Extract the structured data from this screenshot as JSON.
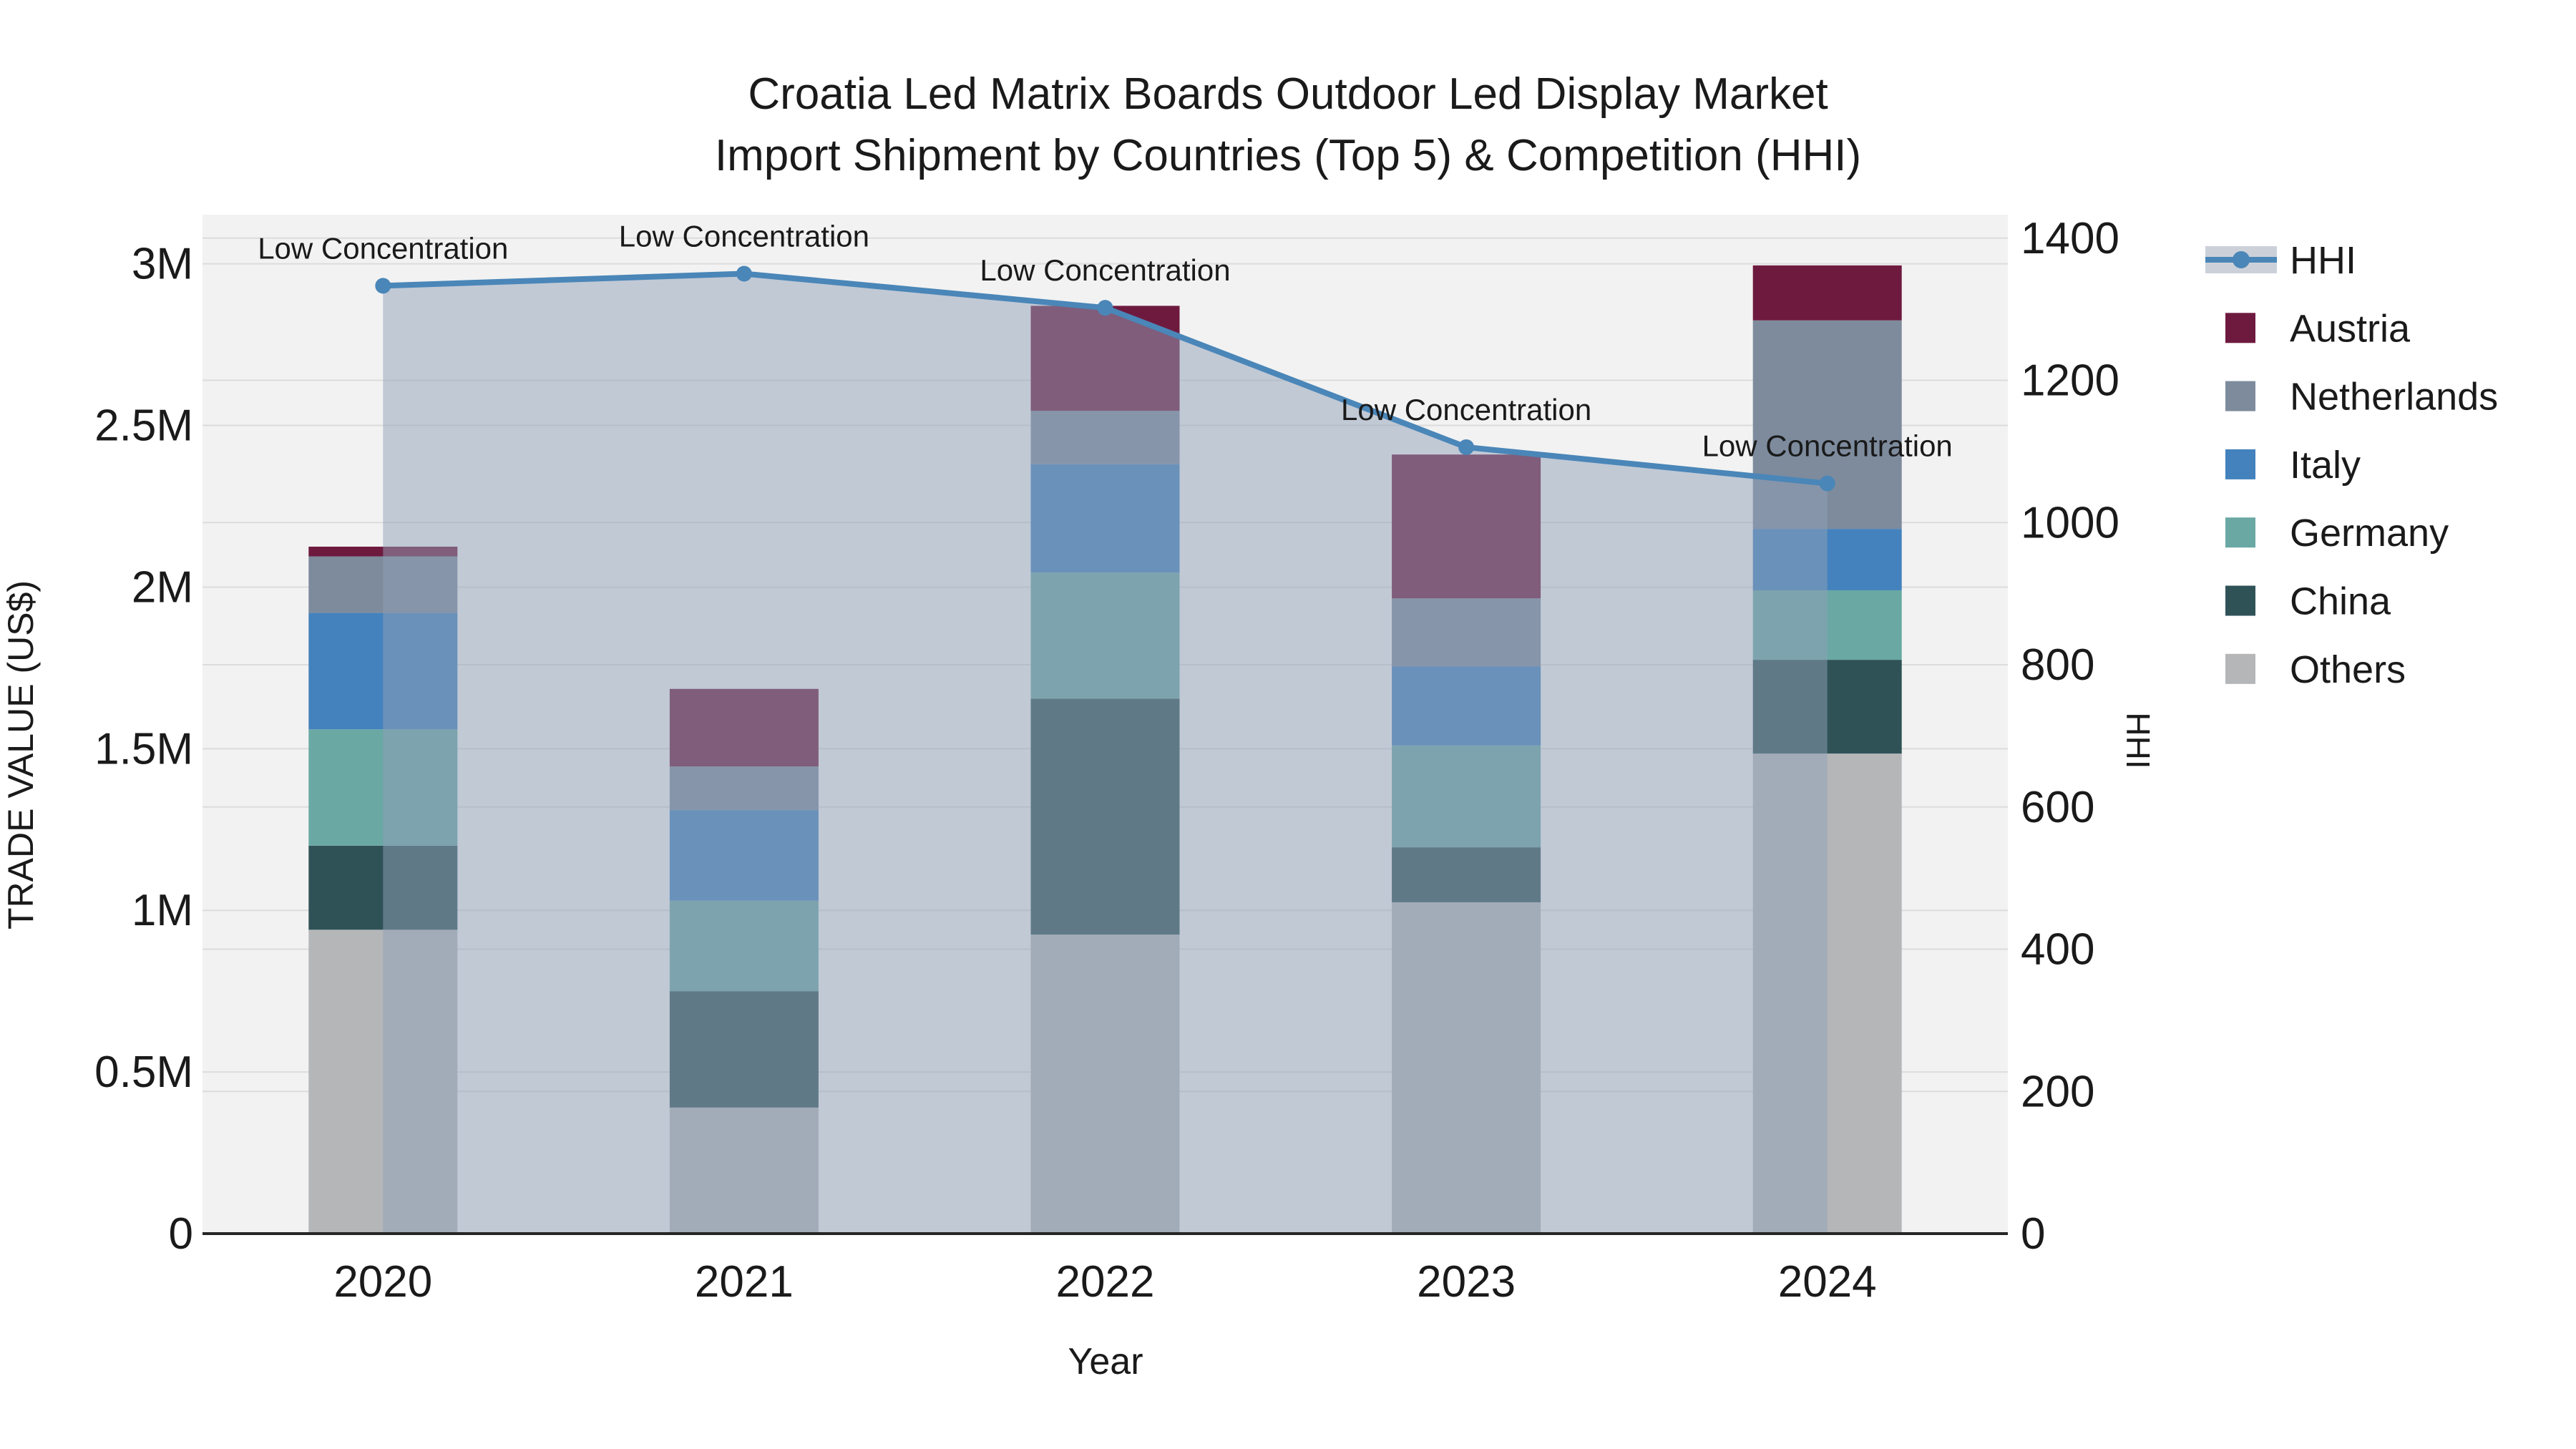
{
  "title": {
    "line1": "Croatia Led Matrix Boards Outdoor Led Display Market",
    "line2": "Import Shipment by Countries (Top 5) & Competition (HHI)"
  },
  "axes": {
    "x": {
      "label": "Year",
      "tick_labels": [
        "2020",
        "2021",
        "2022",
        "2023",
        "2024"
      ]
    },
    "y_left": {
      "label": "TRADE VALUE (US$)",
      "tick_labels": [
        "0",
        "0.5M",
        "1M",
        "1.5M",
        "2M",
        "2.5M",
        "3M"
      ],
      "tick_values": [
        0,
        500000,
        1000000,
        1500000,
        2000000,
        2500000,
        3000000
      ],
      "range": [
        0,
        3152000
      ]
    },
    "y_right": {
      "label": "HHI",
      "tick_labels": [
        "0",
        "200",
        "400",
        "600",
        "800",
        "1000",
        "1200",
        "1400"
      ],
      "tick_values": [
        0,
        200,
        400,
        600,
        800,
        1000,
        1200,
        1400
      ],
      "range": [
        0,
        1433
      ]
    }
  },
  "legend": {
    "items": [
      {
        "label": "HHI",
        "type": "line",
        "color": "#4a86b8",
        "band_color": "#ccd1d9"
      },
      {
        "label": "Austria",
        "type": "swatch",
        "color": "#6e1a3f"
      },
      {
        "label": "Netherlands",
        "type": "swatch",
        "color": "#7d8b9d"
      },
      {
        "label": "Italy",
        "type": "swatch",
        "color": "#4382bd"
      },
      {
        "label": "Germany",
        "type": "swatch",
        "color": "#6aa8a4"
      },
      {
        "label": "China",
        "type": "swatch",
        "color": "#2f5257"
      },
      {
        "label": "Others",
        "type": "swatch",
        "color": "#b4b6b8"
      }
    ]
  },
  "colors": {
    "plot_background": "#f2f2f2",
    "gridline": "#dcdcdc",
    "axis_line": "#262626",
    "hhi_line": "#4a86b8",
    "hhi_area": "rgba(143,160,184,0.5)",
    "text": "#1a1a1a"
  },
  "chart_data": {
    "type": "bar+line",
    "title": "Croatia Led Matrix Boards Outdoor Led Display Market Import Shipment by Countries (Top 5) & Competition (HHI)",
    "xlabel": "Year",
    "ylabel_left": "TRADE VALUE (US$)",
    "ylabel_right": "HHI",
    "categories": [
      "2020",
      "2021",
      "2022",
      "2023",
      "2024"
    ],
    "bar_unit": "US$",
    "stack_note": "stacked bottom-to-top: Others, China, Germany, Italy, Netherlands, Austria",
    "series": [
      {
        "name": "Austria",
        "color": "#6e1a3f",
        "values": [
          30000,
          240000,
          325000,
          445000,
          170000
        ]
      },
      {
        "name": "Netherlands",
        "color": "#7d8b9d",
        "values": [
          175000,
          135000,
          165000,
          210000,
          645000
        ]
      },
      {
        "name": "Italy",
        "color": "#4382bd",
        "values": [
          360000,
          280000,
          335000,
          245000,
          190000
        ]
      },
      {
        "name": "Germany",
        "color": "#6aa8a4",
        "values": [
          360000,
          280000,
          390000,
          315000,
          215000
        ]
      },
      {
        "name": "China",
        "color": "#2f5257",
        "values": [
          260000,
          360000,
          730000,
          170000,
          290000
        ]
      },
      {
        "name": "Others",
        "color": "#b4b6b8",
        "values": [
          940000,
          390000,
          925000,
          1025000,
          1485000
        ]
      }
    ],
    "totals": [
      2125000,
      1685000,
      2870000,
      2410000,
      2995000
    ],
    "line": {
      "name": "HHI",
      "color": "#4a86b8",
      "values": [
        1333,
        1350,
        1302,
        1106,
        1055
      ],
      "annotations": [
        "Low Concentration",
        "Low Concentration",
        "Low Concentration",
        "Low Concentration",
        "Low Concentration"
      ]
    },
    "ylim_left": [
      0,
      3152000
    ],
    "ylim_right": [
      0,
      1433
    ],
    "grid": true,
    "legend_position": "right"
  }
}
